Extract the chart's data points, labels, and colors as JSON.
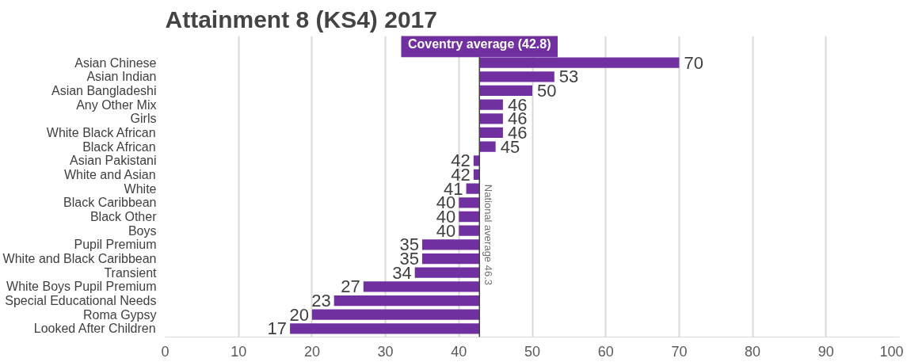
{
  "chart_data": {
    "type": "bar",
    "orientation": "horizontal",
    "title": "Attainment 8 (KS4) 2017",
    "categories": [
      "Asian Chinese",
      "Asian Indian",
      "Asian Bangladeshi",
      "Any Other Mix",
      "Girls",
      "White Black African",
      "Black African",
      "Asian Pakistani",
      "White and Asian",
      "White",
      "Black Caribbean",
      "Black Other",
      "Boys",
      "Pupil Premium",
      "White and Black Caribbean",
      "Transient",
      "White Boys Pupil Premium",
      "Special Educational Needs",
      "Roma Gypsy",
      "Looked After Children"
    ],
    "base": [
      42.8,
      42.8,
      42.8,
      42.8,
      42.8,
      42.8,
      42.8,
      42.8,
      42.8,
      42.8,
      42.8,
      42.8,
      42.8,
      42.8,
      42.8,
      42.8,
      42.8,
      42.8,
      42.8,
      42.8
    ],
    "values": [
      27.2,
      10.2,
      7.2,
      3.2,
      3.2,
      3.2,
      2.2,
      -0.8,
      -0.8,
      -1.8,
      -2.8,
      -2.8,
      -2.8,
      -7.8,
      -7.8,
      -8.8,
      -15.8,
      -19.8,
      -22.8,
      -25.8
    ],
    "value_labels": [
      "70",
      "53",
      "50",
      "46",
      "46",
      "46",
      "45",
      "42",
      "42",
      "41",
      "40",
      "40",
      "40",
      "35",
      "35",
      "34",
      "27",
      "23",
      "20",
      "17"
    ],
    "color": "#7030a0",
    "xlim": [
      0,
      100
    ],
    "xticks": [
      0,
      10,
      20,
      30,
      40,
      50,
      60,
      70,
      80,
      90,
      100
    ],
    "grid": "x",
    "ref_lines": [
      {
        "axis": "x",
        "value": 42.8,
        "label": "Coventry average (42.8)",
        "color": "#404040"
      }
    ],
    "annotations": [
      "National  average  46.3"
    ]
  }
}
